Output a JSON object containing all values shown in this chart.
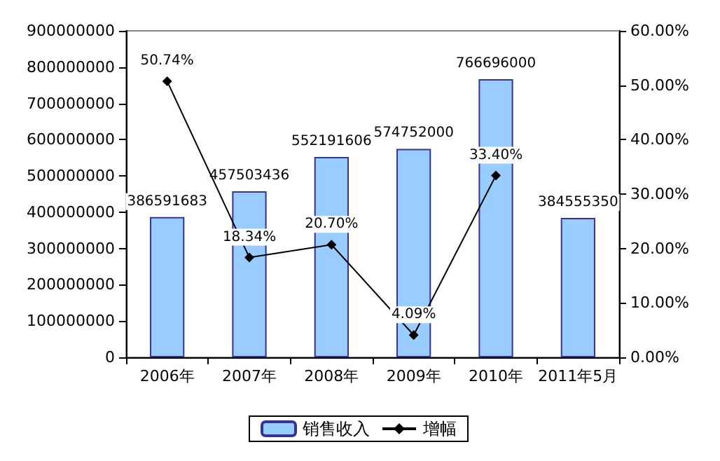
{
  "chart_data": {
    "type": "bar",
    "categories": [
      "2006年",
      "2007年",
      "2008年",
      "2009年",
      "2010年",
      "2011年5月"
    ],
    "series": [
      {
        "name": "销售收入",
        "color": "#99ccff",
        "values": [
          386591683,
          457503436,
          552191606,
          574752000,
          766696000,
          384555350
        ],
        "value_labels": [
          "386591683",
          "457503436",
          "552191606",
          "574752000",
          "766696000",
          "384555350"
        ]
      },
      {
        "name": "增幅",
        "type": "line",
        "axis": "y2",
        "color": "#000000",
        "marker": "diamond",
        "values": [
          50.74,
          18.34,
          20.7,
          4.09,
          33.4,
          null
        ],
        "value_labels": [
          "50.74%",
          "18.34%",
          "20.70%",
          "4.09%",
          "33.40%",
          null
        ]
      }
    ],
    "ylim": [
      0,
      900000000
    ],
    "yticks": [
      0,
      100000000,
      200000000,
      300000000,
      400000000,
      500000000,
      600000000,
      700000000,
      800000000,
      900000000
    ],
    "y2lim": [
      0,
      60
    ],
    "y2ticks": [
      {
        "value": 0,
        "label": "0.00%"
      },
      {
        "value": 10,
        "label": "10.00%"
      },
      {
        "value": 20,
        "label": "20.00%"
      },
      {
        "value": 30,
        "label": "30.00%"
      },
      {
        "value": 40,
        "label": "40.00%"
      },
      {
        "value": 50,
        "label": "50.00%"
      },
      {
        "value": 60,
        "label": "60.00%"
      }
    ],
    "grid": false,
    "legend": "bottom"
  }
}
